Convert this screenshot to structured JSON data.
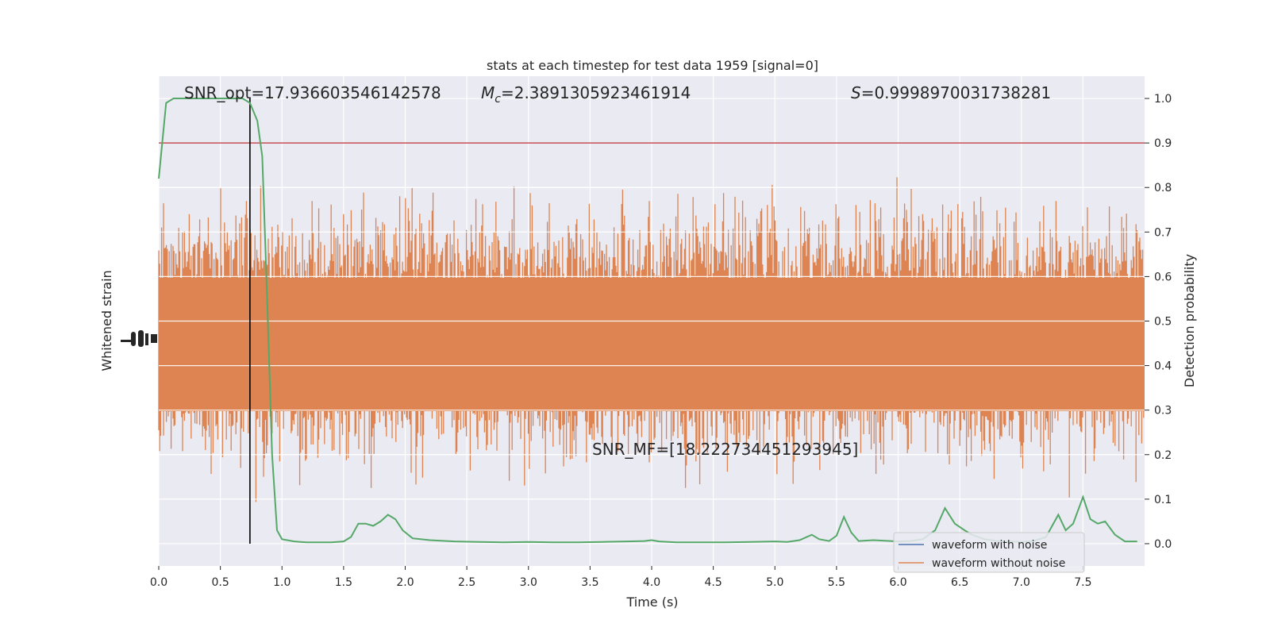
{
  "chart_data": {
    "type": "line",
    "title": "stats at each timestep for test data 1959 [signal=0]",
    "xlabel": "Time (s)",
    "ylabel_left": "Whitened strain",
    "ylabel_right": "Detection probability",
    "xlim": [
      0.0,
      8.0
    ],
    "ylim_right": [
      -0.05,
      1.05
    ],
    "x_ticks": [
      "0.0",
      "0.5",
      "1.0",
      "1.5",
      "2.0",
      "2.5",
      "3.0",
      "3.5",
      "4.0",
      "4.5",
      "5.0",
      "5.5",
      "6.0",
      "6.5",
      "7.0",
      "7.5"
    ],
    "y_ticks_right": [
      "0.0",
      "0.1",
      "0.2",
      "0.3",
      "0.4",
      "0.5",
      "0.6",
      "0.7",
      "0.8",
      "0.9",
      "1.0"
    ],
    "grid": true,
    "annotations": {
      "snr_opt": "SNR_opt=17.936603546142578",
      "mc_symbol": "M",
      "mc_sub": "c",
      "mc_value": "=2.3891305923461914",
      "s_symbol": "S",
      "s_value": "=0.9998970031738281",
      "snr_mf": "SNR_MF=[18.222734451293945]"
    },
    "threshold": 0.9,
    "marker_time": 0.74,
    "colors": {
      "with_noise": "#4c72b0",
      "without_noise": "#dd8452",
      "probability": "#55a868",
      "threshold": "#c44e52",
      "marker": "#000000",
      "background": "#eaeaf2",
      "grid": "#ffffff"
    },
    "legend": {
      "position": "lower-right",
      "entries": [
        "waveform with noise",
        "waveform without noise"
      ]
    },
    "series": [
      {
        "name": "Detection probability",
        "x": [
          0.0,
          0.06,
          0.12,
          0.2,
          0.3,
          0.4,
          0.5,
          0.6,
          0.68,
          0.74,
          0.8,
          0.84,
          0.88,
          0.92,
          0.96,
          1.0,
          1.1,
          1.2,
          1.3,
          1.4,
          1.5,
          1.56,
          1.62,
          1.68,
          1.74,
          1.8,
          1.86,
          1.92,
          1.98,
          2.06,
          2.2,
          2.4,
          2.6,
          2.8,
          3.0,
          3.2,
          3.4,
          3.6,
          3.8,
          3.94,
          4.0,
          4.06,
          4.2,
          4.4,
          4.6,
          4.8,
          5.0,
          5.1,
          5.2,
          5.3,
          5.36,
          5.44,
          5.5,
          5.56,
          5.62,
          5.68,
          5.8,
          6.0,
          6.1,
          6.2,
          6.3,
          6.38,
          6.46,
          6.54,
          6.6,
          6.7,
          6.8,
          6.9,
          7.0,
          7.1,
          7.2,
          7.3,
          7.36,
          7.42,
          7.5,
          7.56,
          7.62,
          7.68,
          7.76,
          7.84,
          7.94
        ],
        "y": [
          0.82,
          0.99,
          1.0,
          1.0,
          1.0,
          1.0,
          1.0,
          1.0,
          1.0,
          0.99,
          0.95,
          0.87,
          0.55,
          0.2,
          0.03,
          0.01,
          0.005,
          0.003,
          0.003,
          0.003,
          0.005,
          0.015,
          0.045,
          0.045,
          0.04,
          0.05,
          0.065,
          0.055,
          0.03,
          0.012,
          0.008,
          0.005,
          0.004,
          0.003,
          0.004,
          0.003,
          0.003,
          0.004,
          0.005,
          0.006,
          0.008,
          0.005,
          0.003,
          0.003,
          0.003,
          0.004,
          0.005,
          0.004,
          0.008,
          0.02,
          0.01,
          0.006,
          0.018,
          0.06,
          0.025,
          0.006,
          0.008,
          0.005,
          0.006,
          0.01,
          0.03,
          0.08,
          0.045,
          0.03,
          0.02,
          0.01,
          0.006,
          0.005,
          0.004,
          0.006,
          0.015,
          0.065,
          0.03,
          0.045,
          0.105,
          0.055,
          0.045,
          0.05,
          0.02,
          0.005,
          0.005
        ]
      },
      {
        "name": "waveform with noise",
        "x": [
          0.0,
          7.95
        ],
        "y": [
          0.0,
          0.0
        ]
      },
      {
        "name": "waveform without noise",
        "x": [
          0.0,
          7.95
        ],
        "y": [
          0.0,
          0.0
        ]
      }
    ]
  }
}
